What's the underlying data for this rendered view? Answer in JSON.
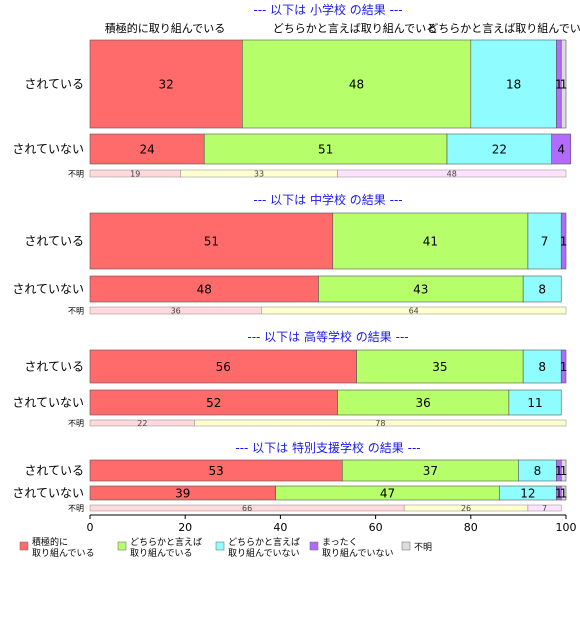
{
  "chart_data": {
    "type": "bar",
    "orientation": "horizontal-stacked-percent",
    "xlim": [
      0,
      100
    ],
    "xticks": [
      "0",
      "20",
      "40",
      "60",
      "80",
      "100"
    ],
    "column_headers": [
      "積極的に取り組んでいる",
      "どちらかと言えば取り組んでいる",
      "どちらかと言えば取り組んでいない"
    ],
    "categories_legend": [
      {
        "name": "積極的に\n取り組んでいる",
        "color": "#ff6b6b"
      },
      {
        "name": "どちらかと言えば\n取り組んでいる",
        "color": "#b6ff6b"
      },
      {
        "name": "どちらかと言えば\n取り組んでいない",
        "color": "#8ffcff"
      },
      {
        "name": "まったく\n取り組んでいない",
        "color": "#b36bff"
      },
      {
        "name": "不明",
        "color": "#dddddd"
      }
    ],
    "unknown_colors": [
      "#ffd9dc",
      "#ffffd0",
      "#ffe2ff"
    ],
    "sections": [
      {
        "title": "--- 以下は 小学校 の結果 ---",
        "rows": [
          {
            "label": "されている",
            "values": [
              32,
              48,
              18,
              1,
              1
            ],
            "labels": [
              "32",
              "48",
              "18",
              "1",
              "1"
            ]
          },
          {
            "label": "されていない",
            "values": [
              24,
              51,
              22,
              4,
              0
            ],
            "labels": [
              "24",
              "51",
              "22",
              "4",
              ""
            ]
          }
        ],
        "unknown": {
          "label": "不明",
          "values": [
            19,
            33,
            48
          ],
          "labels": [
            "19",
            "33",
            "48"
          ]
        }
      },
      {
        "title": "--- 以下は 中学校 の結果 ---",
        "rows": [
          {
            "label": "されている",
            "values": [
              51,
              41,
              7,
              1,
              0
            ],
            "labels": [
              "51",
              "41",
              "7",
              "1",
              ""
            ]
          },
          {
            "label": "されていない",
            "values": [
              48,
              43,
              8,
              0,
              0
            ],
            "labels": [
              "48",
              "43",
              "8",
              "",
              ""
            ]
          }
        ],
        "unknown": {
          "label": "不明",
          "values": [
            36,
            64
          ],
          "labels": [
            "36",
            "64"
          ]
        }
      },
      {
        "title": "--- 以下は 高等学校 の結果 ---",
        "rows": [
          {
            "label": "されている",
            "values": [
              56,
              35,
              8,
              1,
              0
            ],
            "labels": [
              "56",
              "35",
              "8",
              "1",
              ""
            ]
          },
          {
            "label": "されていない",
            "values": [
              52,
              36,
              11,
              0,
              0
            ],
            "labels": [
              "52",
              "36",
              "11",
              "",
              ""
            ]
          }
        ],
        "unknown": {
          "label": "不明",
          "values": [
            22,
            78
          ],
          "labels": [
            "22",
            "78"
          ]
        }
      },
      {
        "title": "--- 以下は 特別支援学校 の結果 ---",
        "rows": [
          {
            "label": "されている",
            "values": [
              53,
              37,
              8,
              1,
              1
            ],
            "labels": [
              "53",
              "37",
              "8",
              "1",
              "1"
            ]
          },
          {
            "label": "されていない",
            "values": [
              39,
              47,
              12,
              1,
              1
            ],
            "labels": [
              "39",
              "47",
              "12",
              "1",
              "1"
            ]
          }
        ],
        "unknown": {
          "label": "不明",
          "values": [
            66,
            26,
            7
          ],
          "labels": [
            "66",
            "26",
            "7"
          ]
        }
      }
    ]
  }
}
